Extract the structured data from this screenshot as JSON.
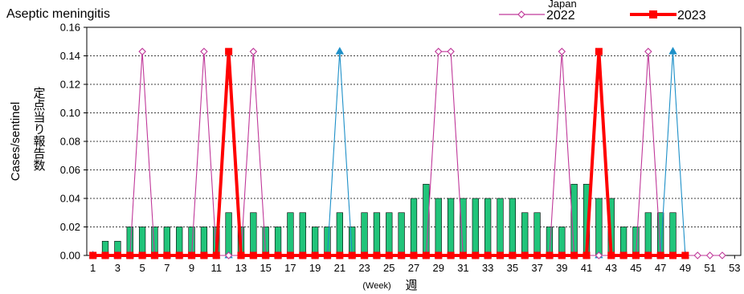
{
  "chart_data": {
    "type": "bar",
    "title": "Aseptic meningitis",
    "ylabel": "Cases/sentinel",
    "ylabel_ja": "定点当り報告数",
    "xlabel": "(Week)",
    "xlabel_ja": "週",
    "ylim": [
      0,
      0.16
    ],
    "yticks": [
      "0.00",
      "0.02",
      "0.04",
      "0.06",
      "0.08",
      "0.10",
      "0.12",
      "0.14",
      "0.16"
    ],
    "xticks": [
      "1",
      "3",
      "5",
      "7",
      "9",
      "11",
      "13",
      "15",
      "17",
      "19",
      "21",
      "23",
      "25",
      "27",
      "29",
      "31",
      "33",
      "35",
      "37",
      "39",
      "41",
      "43",
      "45",
      "47",
      "49",
      "51",
      "53"
    ],
    "xlim": [
      1,
      53
    ],
    "grid": true,
    "legend_title": "Japan",
    "legend_position": "top-right",
    "series": [
      {
        "name": "",
        "kind": "bar",
        "color": "#21c47a",
        "x": [
          2,
          3,
          4,
          5,
          6,
          7,
          8,
          9,
          10,
          11,
          12,
          13,
          14,
          15,
          16,
          17,
          18,
          19,
          20,
          21,
          22,
          23,
          24,
          25,
          26,
          27,
          28,
          29,
          30,
          31,
          32,
          33,
          34,
          35,
          36,
          37,
          38,
          39,
          40,
          41,
          42,
          43,
          44,
          45,
          46,
          47,
          48
        ],
        "values": [
          0.01,
          0.01,
          0.02,
          0.02,
          0.02,
          0.02,
          0.02,
          0.02,
          0.02,
          0.02,
          0.03,
          0.02,
          0.03,
          0.02,
          0.02,
          0.03,
          0.03,
          0.02,
          0.02,
          0.03,
          0.02,
          0.03,
          0.03,
          0.03,
          0.03,
          0.04,
          0.05,
          0.04,
          0.04,
          0.04,
          0.04,
          0.04,
          0.04,
          0.04,
          0.03,
          0.03,
          0.02,
          0.02,
          0.05,
          0.05,
          0.04,
          0.04,
          0.02,
          0.02,
          0.03,
          0.03,
          0.03
        ]
      },
      {
        "name": "",
        "kind": "line",
        "marker": "triangle",
        "color": "#1e90c8",
        "x": [
          1,
          2,
          3,
          4,
          5,
          6,
          7,
          8,
          9,
          10,
          11,
          12,
          13,
          14,
          15,
          16,
          17,
          18,
          19,
          20,
          21,
          22,
          23,
          24,
          25,
          26,
          27,
          28,
          29,
          30,
          31,
          32,
          33,
          34,
          35,
          36,
          37,
          38,
          39,
          40,
          41,
          42,
          43,
          44,
          45,
          46,
          47,
          48,
          49
        ],
        "values": [
          0,
          0,
          0,
          0,
          0,
          0,
          0,
          0,
          0,
          0,
          0,
          0,
          0,
          0,
          0,
          0,
          0,
          0,
          0,
          0,
          0.143,
          0,
          0,
          0,
          0,
          0,
          0,
          0,
          0,
          0,
          0,
          0,
          0,
          0,
          0,
          0,
          0,
          0,
          0,
          0,
          0,
          0,
          0,
          0,
          0,
          0,
          0,
          0.143,
          0
        ]
      },
      {
        "name": "2022",
        "kind": "line",
        "marker": "diamond",
        "color": "#c0399a",
        "x": [
          1,
          2,
          3,
          4,
          5,
          6,
          7,
          8,
          9,
          10,
          11,
          12,
          13,
          14,
          15,
          16,
          17,
          18,
          19,
          20,
          21,
          22,
          23,
          24,
          25,
          26,
          27,
          28,
          29,
          30,
          31,
          32,
          33,
          34,
          35,
          36,
          37,
          38,
          39,
          40,
          41,
          42,
          43,
          44,
          45,
          46,
          47,
          48,
          49,
          50,
          51,
          52
        ],
        "values": [
          0,
          0,
          0,
          0,
          0.143,
          0,
          0,
          0,
          0,
          0.143,
          0,
          0,
          0,
          0.143,
          0,
          0,
          0,
          0,
          0,
          0,
          0,
          0,
          0,
          0,
          0,
          0,
          0,
          0,
          0.143,
          0.143,
          0,
          0,
          0,
          0,
          0,
          0,
          0,
          0,
          0.143,
          0,
          0,
          0,
          0,
          0,
          0,
          0.143,
          0,
          0,
          0,
          0,
          0,
          0
        ]
      },
      {
        "name": "2023",
        "kind": "line",
        "marker": "square",
        "color": "#ff0000",
        "x": [
          1,
          2,
          3,
          4,
          5,
          6,
          7,
          8,
          9,
          10,
          11,
          12,
          13,
          14,
          15,
          16,
          17,
          18,
          19,
          20,
          21,
          22,
          23,
          24,
          25,
          26,
          27,
          28,
          29,
          30,
          31,
          32,
          33,
          34,
          35,
          36,
          37,
          38,
          39,
          40,
          41,
          42,
          43,
          44,
          45,
          46,
          47,
          48,
          49
        ],
        "values": [
          0,
          0,
          0,
          0,
          0,
          0,
          0,
          0,
          0,
          0,
          0,
          0.143,
          0,
          0,
          0,
          0,
          0,
          0,
          0,
          0,
          0,
          0,
          0,
          0,
          0,
          0,
          0,
          0,
          0,
          0,
          0,
          0,
          0,
          0,
          0,
          0,
          0,
          0,
          0,
          0,
          0,
          0.143,
          0,
          0,
          0,
          0,
          0,
          0,
          0
        ]
      }
    ]
  }
}
